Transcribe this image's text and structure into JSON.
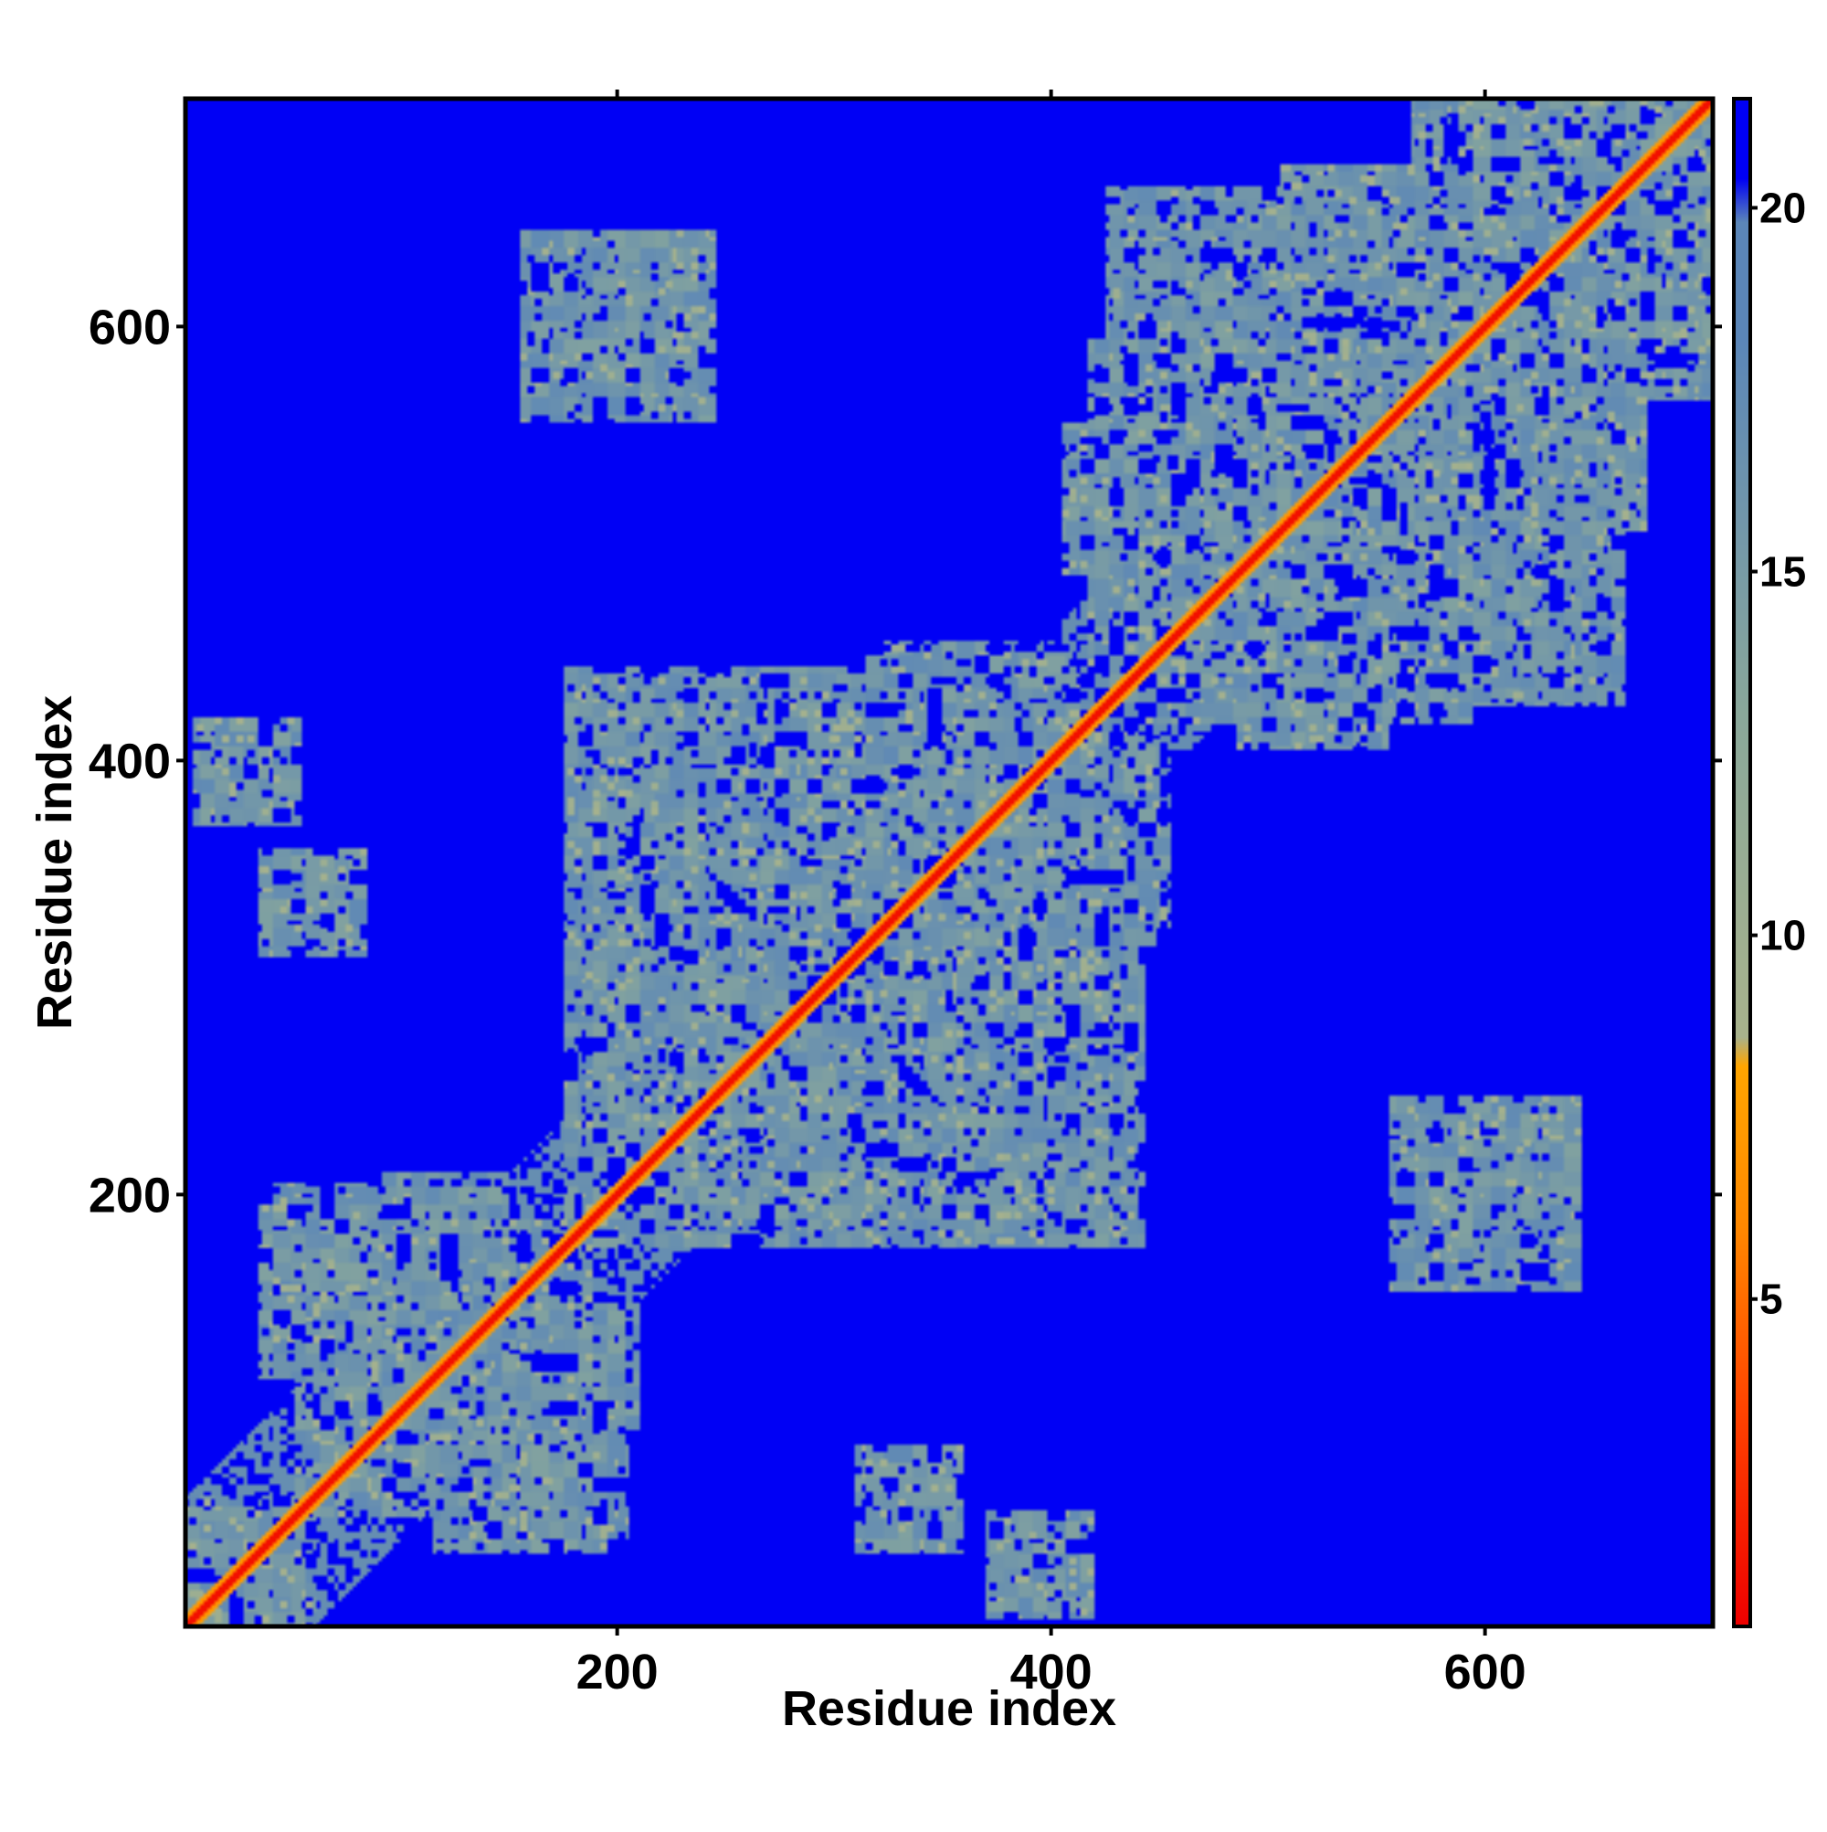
{
  "chart_data": {
    "type": "heatmap",
    "title": "",
    "xlabel": "Residue index",
    "ylabel": "Residue index",
    "xlim": [
      1,
      705
    ],
    "ylim": [
      1,
      705
    ],
    "x_ticks": [
      200,
      400,
      600
    ],
    "y_ticks": [
      200,
      400,
      600
    ],
    "colorbar": {
      "ticks": [
        5,
        10,
        15,
        20
      ],
      "range": [
        0.5,
        21.5
      ],
      "stops": [
        {
          "value": 0.5,
          "color": "#ee0000"
        },
        {
          "value": 3.5,
          "color": "#ff4400"
        },
        {
          "value": 6.0,
          "color": "#ff8800"
        },
        {
          "value": 8.2,
          "color": "#ffa500"
        },
        {
          "value": 8.6,
          "color": "#a8b28c"
        },
        {
          "value": 13.0,
          "color": "#8aa89a"
        },
        {
          "value": 18.2,
          "color": "#5b86b8"
        },
        {
          "value": 19.8,
          "color": "#5b86b8"
        },
        {
          "value": 20.4,
          "color": "#0000f5"
        },
        {
          "value": 21.5,
          "color": "#0000f5"
        }
      ]
    },
    "colors": {
      "far": "#0000f5",
      "mid": "#5b86b8",
      "near": "#c8b86a",
      "contact": "#ee0000"
    },
    "domains": [
      {
        "start": 1,
        "end": 58
      },
      {
        "start": 55,
        "end": 185
      },
      {
        "start": 180,
        "end": 440
      },
      {
        "start": 420,
        "end": 590
      },
      {
        "start": 570,
        "end": 705
      }
    ],
    "contacts": [
      {
        "i": 80,
        "j": 160,
        "w": 45
      },
      {
        "i": 100,
        "j": 140,
        "w": 30
      },
      {
        "i": 120,
        "j": 180,
        "w": 30
      },
      {
        "i": 30,
        "j": 395,
        "w": 25
      },
      {
        "i": 60,
        "j": 335,
        "w": 25
      },
      {
        "i": 200,
        "j": 600,
        "w": 45
      },
      {
        "i": 230,
        "j": 300,
        "w": 40
      },
      {
        "i": 260,
        "j": 320,
        "w": 35
      },
      {
        "i": 300,
        "j": 380,
        "w": 40
      },
      {
        "i": 380,
        "j": 420,
        "w": 30
      },
      {
        "i": 350,
        "j": 420,
        "w": 35
      },
      {
        "i": 470,
        "j": 620,
        "w": 45
      },
      {
        "i": 500,
        "j": 560,
        "w": 40
      },
      {
        "i": 540,
        "j": 640,
        "w": 35
      },
      {
        "i": 620,
        "j": 680,
        "w": 30
      },
      {
        "i": 640,
        "j": 700,
        "w": 30
      },
      {
        "i": 660,
        "j": 700,
        "w": 25
      },
      {
        "i": 440,
        "j": 520,
        "w": 35
      }
    ]
  }
}
